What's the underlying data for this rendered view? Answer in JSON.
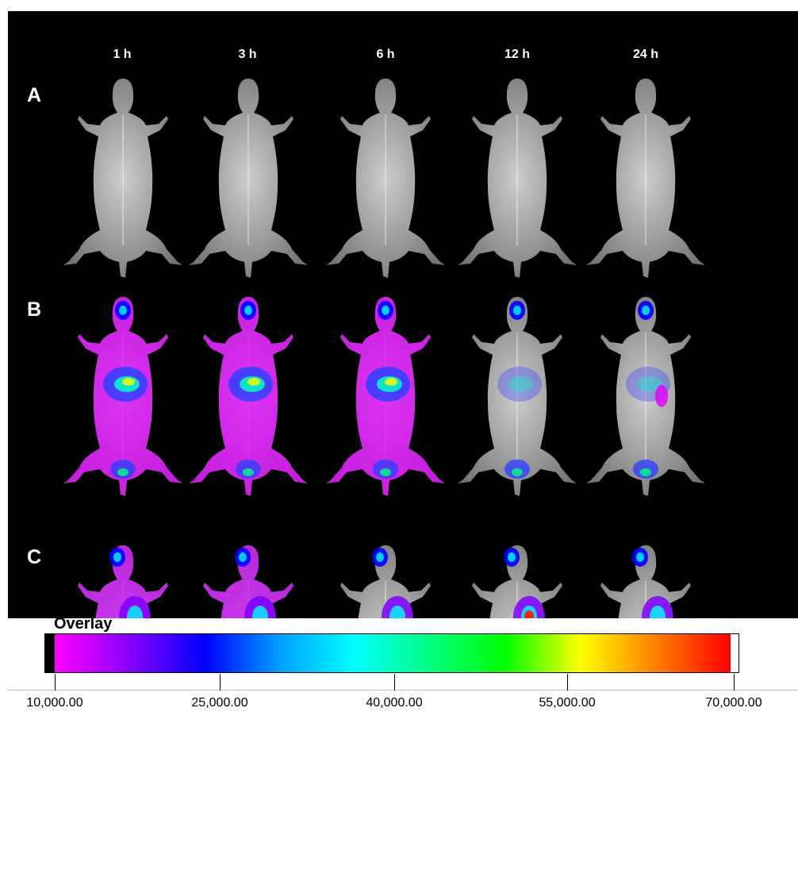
{
  "figure": {
    "timepoints": [
      "1 h",
      "3 h",
      "6 h",
      "12 h",
      "24 h"
    ],
    "rows": [
      {
        "label": "A",
        "imaging": "x-ray"
      },
      {
        "label": "B",
        "imaging": "fluorescence overlay"
      },
      {
        "label": "C",
        "imaging": "fluorescence overlay"
      }
    ]
  },
  "legend": {
    "title": "Overlay",
    "colormap": [
      "#ff00ff",
      "#8800ff",
      "#0000ff",
      "#00a0ff",
      "#00ffff",
      "#00ff80",
      "#00ff00",
      "#ffff00",
      "#ff8000",
      "#ff0000"
    ],
    "ticks": [
      "10,000.00",
      "25,000.00",
      "40,000.00",
      "55,000.00",
      "70,000.00"
    ]
  }
}
